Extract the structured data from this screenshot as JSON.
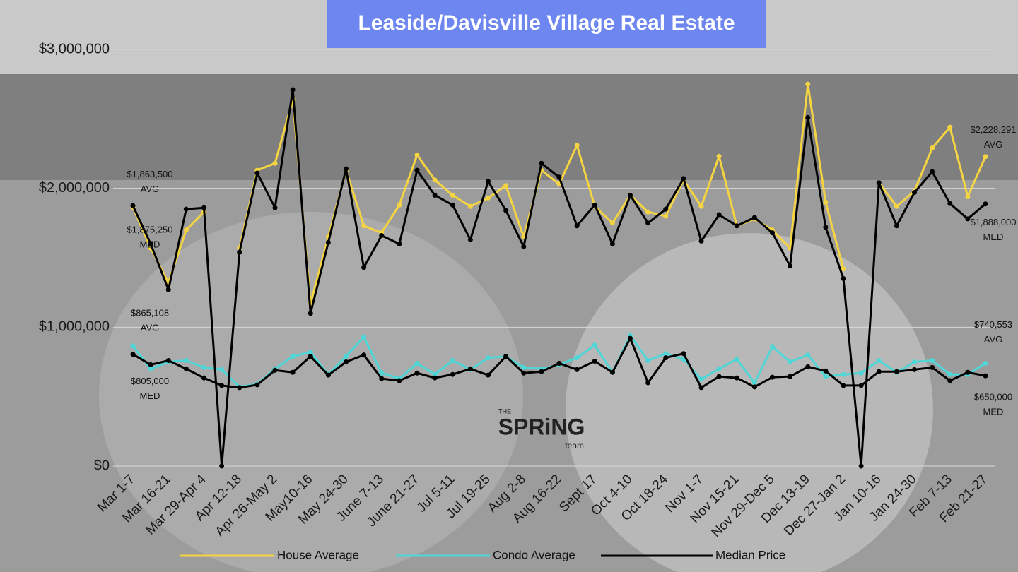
{
  "chart_data": {
    "type": "line",
    "title": "Leaside/Davisville Village Real Estate",
    "categories": [
      "Mar 1-7",
      null,
      "Mar 16-21",
      null,
      "Mar 29-Apr 4",
      null,
      "Apr 12-18",
      null,
      "Apr 26-May 2",
      null,
      "May10-16",
      null,
      "May 24-30",
      null,
      "June 7-13",
      null,
      "June 21-27",
      null,
      "Jul 5-11",
      null,
      "Jul 19-25",
      null,
      "Aug 2-8",
      null,
      "Aug 16-22",
      null,
      "Sept 17",
      null,
      "Oct 4-10",
      null,
      "Oct 18-24",
      null,
      "Nov 1-7",
      null,
      "Nov 15-21",
      null,
      "Nov 29-Dec 5",
      null,
      "Dec 13-19",
      null,
      "Dec 27-Jan 2",
      null,
      "Jan 10-16",
      null,
      "Jan 24-30",
      null,
      "Feb 7-13",
      null,
      "Feb 21-27"
    ],
    "ylim": [
      0,
      3000000
    ],
    "yticks": [
      {
        "value": 0,
        "label": "$0"
      },
      {
        "value": 1000000,
        "label": "$1,000,000"
      },
      {
        "value": 2000000,
        "label": "$2,000,000"
      },
      {
        "value": 3000000,
        "label": "$3,000,000"
      }
    ],
    "grid": true,
    "series": [
      {
        "name": "House Average",
        "color": "#f5d442",
        "tag": "AVG",
        "values": [
          1863500,
          1570000,
          1320000,
          1700000,
          1830000,
          null,
          1570000,
          2130000,
          2180000,
          2640000,
          1170000,
          1650000,
          2130000,
          1730000,
          1680000,
          1880000,
          2240000,
          2060000,
          1950000,
          1870000,
          1930000,
          2020000,
          1650000,
          2130000,
          2030000,
          2310000,
          1870000,
          1750000,
          1950000,
          1830000,
          1800000,
          2060000,
          1870000,
          2230000,
          1730000,
          1780000,
          1700000,
          1570000,
          2750000,
          1900000,
          1420000,
          null,
          2040000,
          1870000,
          1980000,
          2290000,
          2440000,
          1940000,
          2228291
        ],
        "value_labels": [
          "$1,863,500",
          null,
          null,
          null,
          null,
          null,
          null,
          null,
          null,
          null,
          null,
          null,
          null,
          null,
          null,
          null,
          null,
          null,
          null,
          null,
          null,
          null,
          null,
          null,
          null,
          null,
          null,
          null,
          null,
          null,
          null,
          null,
          null,
          null,
          null,
          null,
          null,
          null,
          null,
          null,
          null,
          null,
          null,
          null,
          null,
          null,
          null,
          null,
          "$2,228,291"
        ]
      },
      {
        "name": "Condo Average",
        "color": "#4fd6d6",
        "tag": "AVG",
        "values": [
          865108,
          700000,
          750000,
          760000,
          710000,
          695000,
          570000,
          590000,
          700000,
          790000,
          820000,
          660000,
          790000,
          930000,
          670000,
          630000,
          740000,
          660000,
          760000,
          695000,
          780000,
          790000,
          710000,
          700000,
          730000,
          780000,
          870000,
          675000,
          940000,
          760000,
          810000,
          770000,
          625000,
          700000,
          770000,
          600000,
          860000,
          750000,
          800000,
          645000,
          660000,
          670000,
          760000,
          675000,
          750000,
          760000,
          660000,
          660000,
          740553
        ],
        "value_labels": [
          "$865,108",
          null,
          null,
          null,
          null,
          null,
          null,
          null,
          null,
          null,
          null,
          null,
          null,
          null,
          null,
          null,
          null,
          null,
          null,
          null,
          null,
          null,
          null,
          null,
          null,
          null,
          null,
          null,
          null,
          null,
          null,
          null,
          null,
          null,
          null,
          null,
          null,
          null,
          null,
          null,
          null,
          null,
          null,
          null,
          null,
          null,
          null,
          null,
          "$740,553"
        ]
      },
      {
        "name": "Median Price",
        "color": "#000000",
        "tag": "MED",
        "values": [
          1875250,
          1600000,
          1270000,
          1850000,
          1860000,
          0,
          1540000,
          2110000,
          1860000,
          2710000,
          1100000,
          1610000,
          2140000,
          1430000,
          1660000,
          1600000,
          2130000,
          1950000,
          1880000,
          1630000,
          2050000,
          1840000,
          1580000,
          2180000,
          2080000,
          1730000,
          1880000,
          1600000,
          1950000,
          1750000,
          1850000,
          2070000,
          1620000,
          1810000,
          1730000,
          1790000,
          1680000,
          1440000,
          2510000,
          1720000,
          1350000,
          0,
          2040000,
          1730000,
          1970000,
          2120000,
          1890000,
          1780000,
          1888000
        ],
        "value_labels": [
          "$1,875,250",
          null,
          null,
          null,
          null,
          null,
          null,
          null,
          null,
          null,
          null,
          null,
          null,
          null,
          null,
          null,
          null,
          null,
          null,
          null,
          null,
          null,
          null,
          null,
          null,
          null,
          null,
          null,
          null,
          null,
          null,
          null,
          null,
          null,
          null,
          null,
          null,
          null,
          null,
          null,
          null,
          null,
          null,
          null,
          null,
          null,
          null,
          null,
          "$1,888,000"
        ]
      },
      {
        "color": "#000000",
        "tag": "MED",
        "values": [
          805000,
          730000,
          760000,
          700000,
          635000,
          580000,
          565000,
          585000,
          690000,
          675000,
          790000,
          655000,
          750000,
          800000,
          630000,
          615000,
          670000,
          635000,
          660000,
          700000,
          655000,
          790000,
          670000,
          680000,
          740000,
          695000,
          755000,
          675000,
          920000,
          600000,
          780000,
          810000,
          565000,
          645000,
          635000,
          570000,
          640000,
          645000,
          715000,
          685000,
          580000,
          580000,
          680000,
          680000,
          695000,
          710000,
          615000,
          675000,
          650000
        ],
        "value_labels": [
          "$805,000",
          null,
          null,
          null,
          null,
          null,
          null,
          null,
          null,
          null,
          null,
          null,
          null,
          null,
          null,
          null,
          null,
          null,
          null,
          null,
          null,
          null,
          null,
          null,
          null,
          null,
          null,
          null,
          null,
          null,
          null,
          null,
          null,
          null,
          null,
          null,
          null,
          null,
          null,
          null,
          null,
          null,
          null,
          null,
          null,
          null,
          null,
          null,
          "$650,000"
        ]
      }
    ],
    "watermark": {
      "top": "THE",
      "main": "SPRiNG",
      "bottom": "team"
    }
  }
}
